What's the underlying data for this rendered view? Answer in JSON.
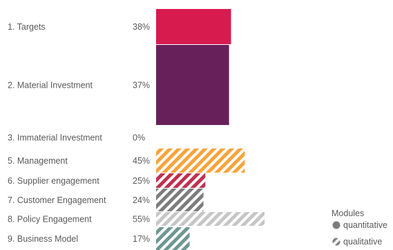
{
  "chart_data": {
    "type": "bar",
    "orientation": "horizontal",
    "categories": [
      "1. Targets",
      "2. Material Investment",
      "3. Immaterial Investment",
      "5. Management",
      "6.  Supplier engagement",
      "7.  Customer Engagement",
      "8. Policy Engagement",
      "9. Business Model"
    ],
    "values": [
      38,
      37,
      0,
      45,
      25,
      24,
      55,
      17
    ],
    "value_labels": [
      "38%",
      "37%",
      "0%",
      "45%",
      "25%",
      "24%",
      "55%",
      "17%"
    ],
    "bar_style": [
      "solid",
      "solid",
      "solid",
      "hatched",
      "hatched",
      "hatched",
      "hatched",
      "hatched"
    ],
    "colors": [
      "#d81b4f",
      "#68205a",
      "#68205a",
      "#f7a43c",
      "#c0304f",
      "#7d7d7d",
      "#c6c6c6",
      "#6e9793"
    ],
    "xlim": [
      0,
      55
    ],
    "legend": {
      "title": "Modules",
      "entries": [
        {
          "label": "quantitative",
          "style": "solid",
          "color": "#7d7d7d"
        },
        {
          "label": "qualitative",
          "style": "hatched",
          "color": "#7d7d7d"
        }
      ],
      "position": "bottom-right"
    }
  }
}
